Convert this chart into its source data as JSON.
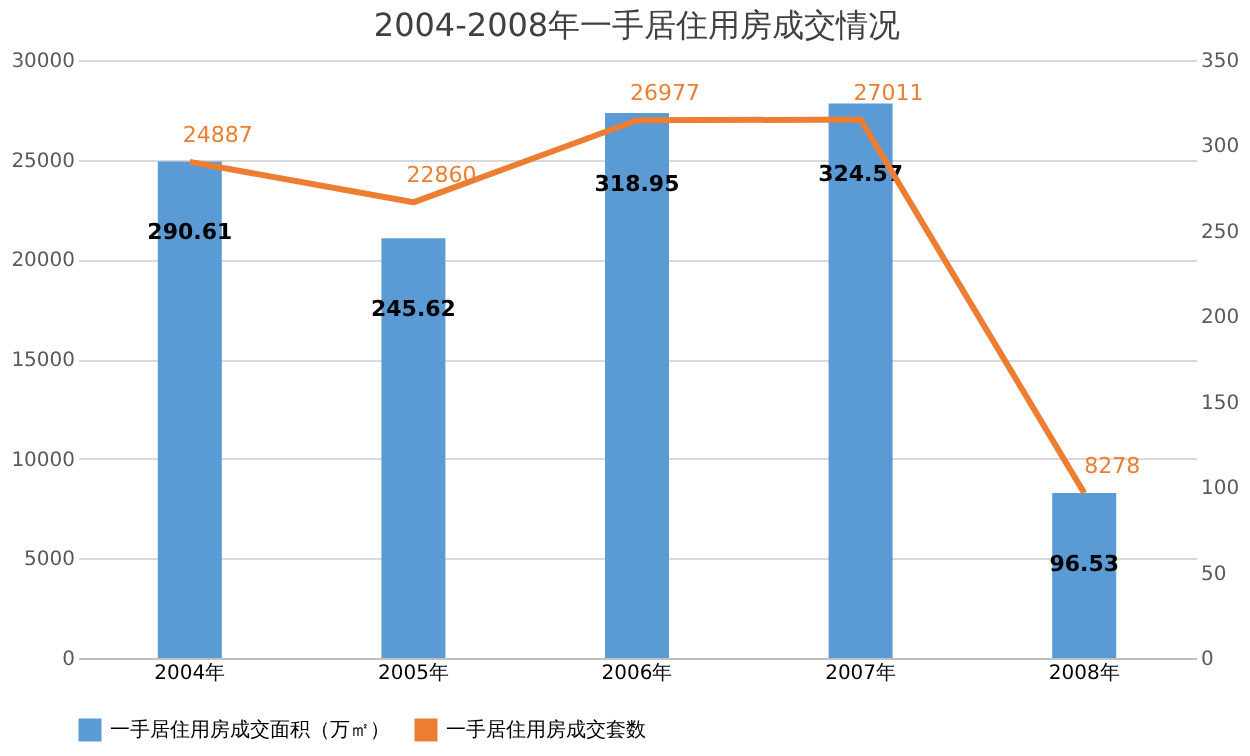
{
  "chart_data": {
    "type": "bar",
    "title": "2004-2008年一手居住用房成交情况",
    "categories": [
      "2004年",
      "2005年",
      "2006年",
      "2007年",
      "2008年"
    ],
    "series": [
      {
        "name": "一手居住用房成交面积（万㎡）",
        "axis": "y2",
        "color": "#5b9bd5",
        "values": [
          290.61,
          245.62,
          318.95,
          324.57,
          96.53
        ]
      },
      {
        "name": "一手居住用房成交套数",
        "type": "line",
        "axis": "y",
        "color": "#ed7d31",
        "values": [
          24887,
          22860,
          26977,
          27011,
          8278
        ]
      }
    ],
    "ylim": [
      0,
      30000
    ],
    "yticks": [
      0,
      5000,
      10000,
      15000,
      20000,
      25000,
      30000
    ],
    "y2lim": [
      0,
      350
    ],
    "y2ticks": [
      0,
      50,
      100,
      150,
      200,
      250,
      300,
      350
    ],
    "grid": "y",
    "legend": "bottom",
    "data_labels": true,
    "marker": "none"
  }
}
